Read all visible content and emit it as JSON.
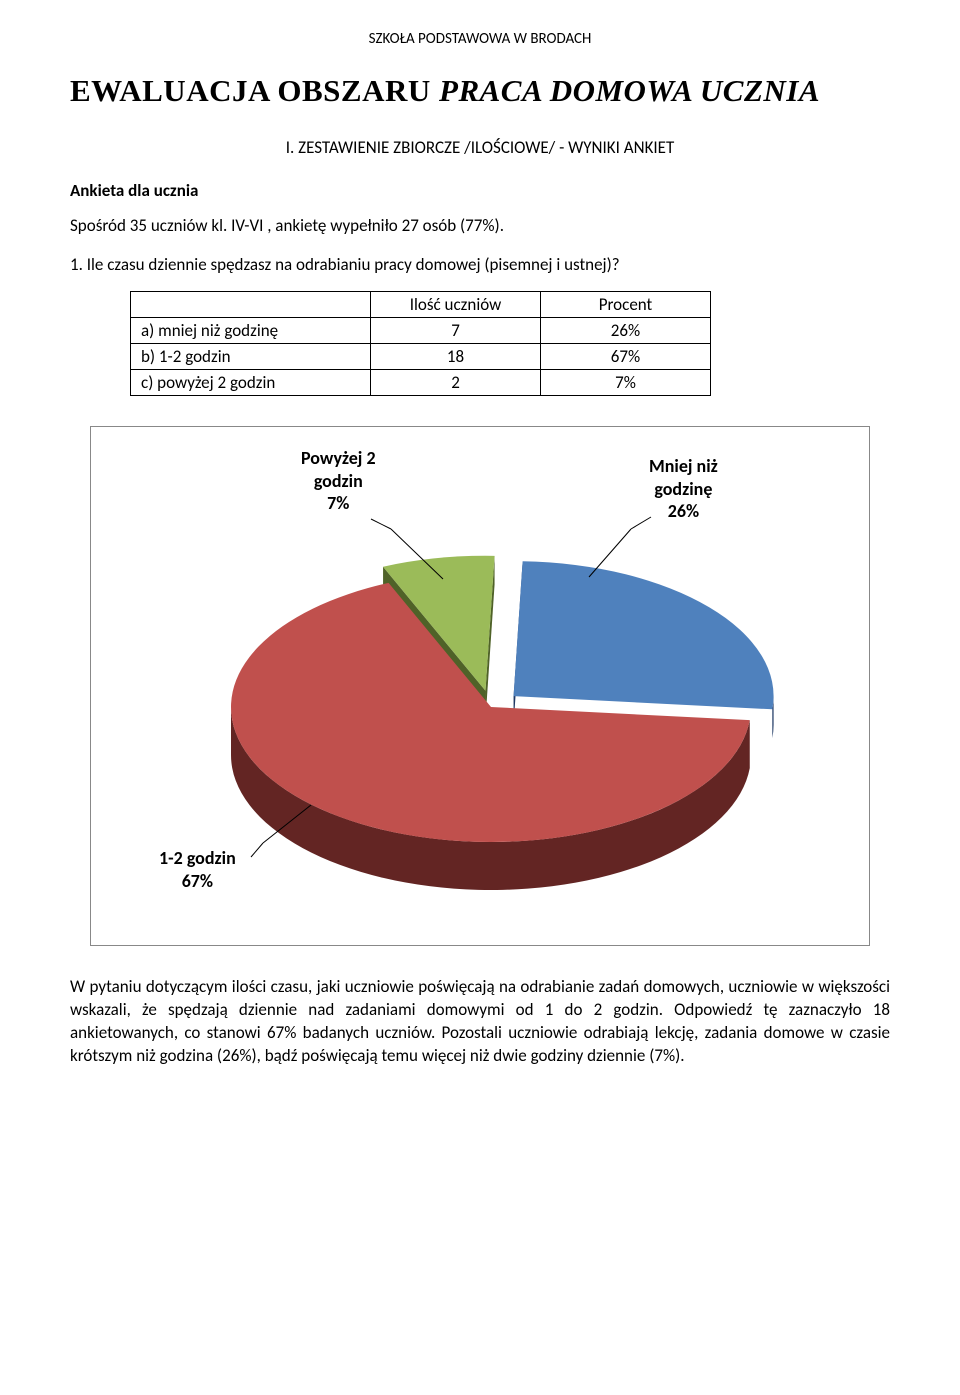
{
  "header": {
    "school": "SZKOŁA PODSTAWOWA W BRODACH"
  },
  "title": {
    "part1": "EWALUACJA  OBSZARU  ",
    "part2_italic": "PRACA DOMOWA  UCZNIA"
  },
  "section_heading": "I. ZESTAWIENIE ZBIORCZE /ILOŚCIOWE/ - WYNIKI ANKIET",
  "subheading": "Ankieta dla ucznia",
  "intro": "Spośród  35 uczniów kl. IV-VI , ankietę wypełniło 27 osób (77%).",
  "question": "1. Ile czasu dziennie spędzasz na odrabianiu pracy domowej (pisemnej i ustnej)?",
  "table": {
    "head_count": "Ilość uczniów",
    "head_pct": "Procent",
    "rows": [
      {
        "label": "a) mniej niż godzinę",
        "count": "7",
        "pct": "26%"
      },
      {
        "label": "b) 1-2 godzin",
        "count": "18",
        "pct": "67%"
      },
      {
        "label": "c)  powyżej 2 godzin",
        "count": "2",
        "pct": "7%"
      }
    ]
  },
  "chart": {
    "type": "pie-3d-exploded",
    "labels": {
      "a": "Powyżej 2\ngodzin\n7%",
      "b": "Mniej niż\ngodzinę\n26%",
      "c": "1-2 godzin\n67%"
    },
    "slices": [
      {
        "name": "Powyżej 2 godzin",
        "value": 7,
        "color_top": "#9bbb59",
        "color_side": "#4f6228"
      },
      {
        "name": "Mniej niż godzinę",
        "value": 26,
        "color_top": "#4f81bd",
        "color_side": "#1f3864"
      },
      {
        "name": "1-2 godzin",
        "value": 67,
        "color_top": "#c0504d",
        "color_side": "#632523"
      }
    ],
    "background": "#ffffff",
    "label_fontsize": 18
  },
  "paragraph": "W pytaniu dotyczącym ilości czasu, jaki uczniowie poświęcają na odrabianie zadań domowych, uczniowie w większości wskazali, że spędzają dziennie nad zadaniami domowymi od 1 do 2 godzin. Odpowiedź tę zaznaczyło 18 ankietowanych, co stanowi 67% badanych uczniów. Pozostali uczniowie odrabiają lekcję, zadania domowe w czasie krótszym niż godzina (26%), bądź poświęcają temu więcej niż dwie godziny dziennie (7%)."
}
